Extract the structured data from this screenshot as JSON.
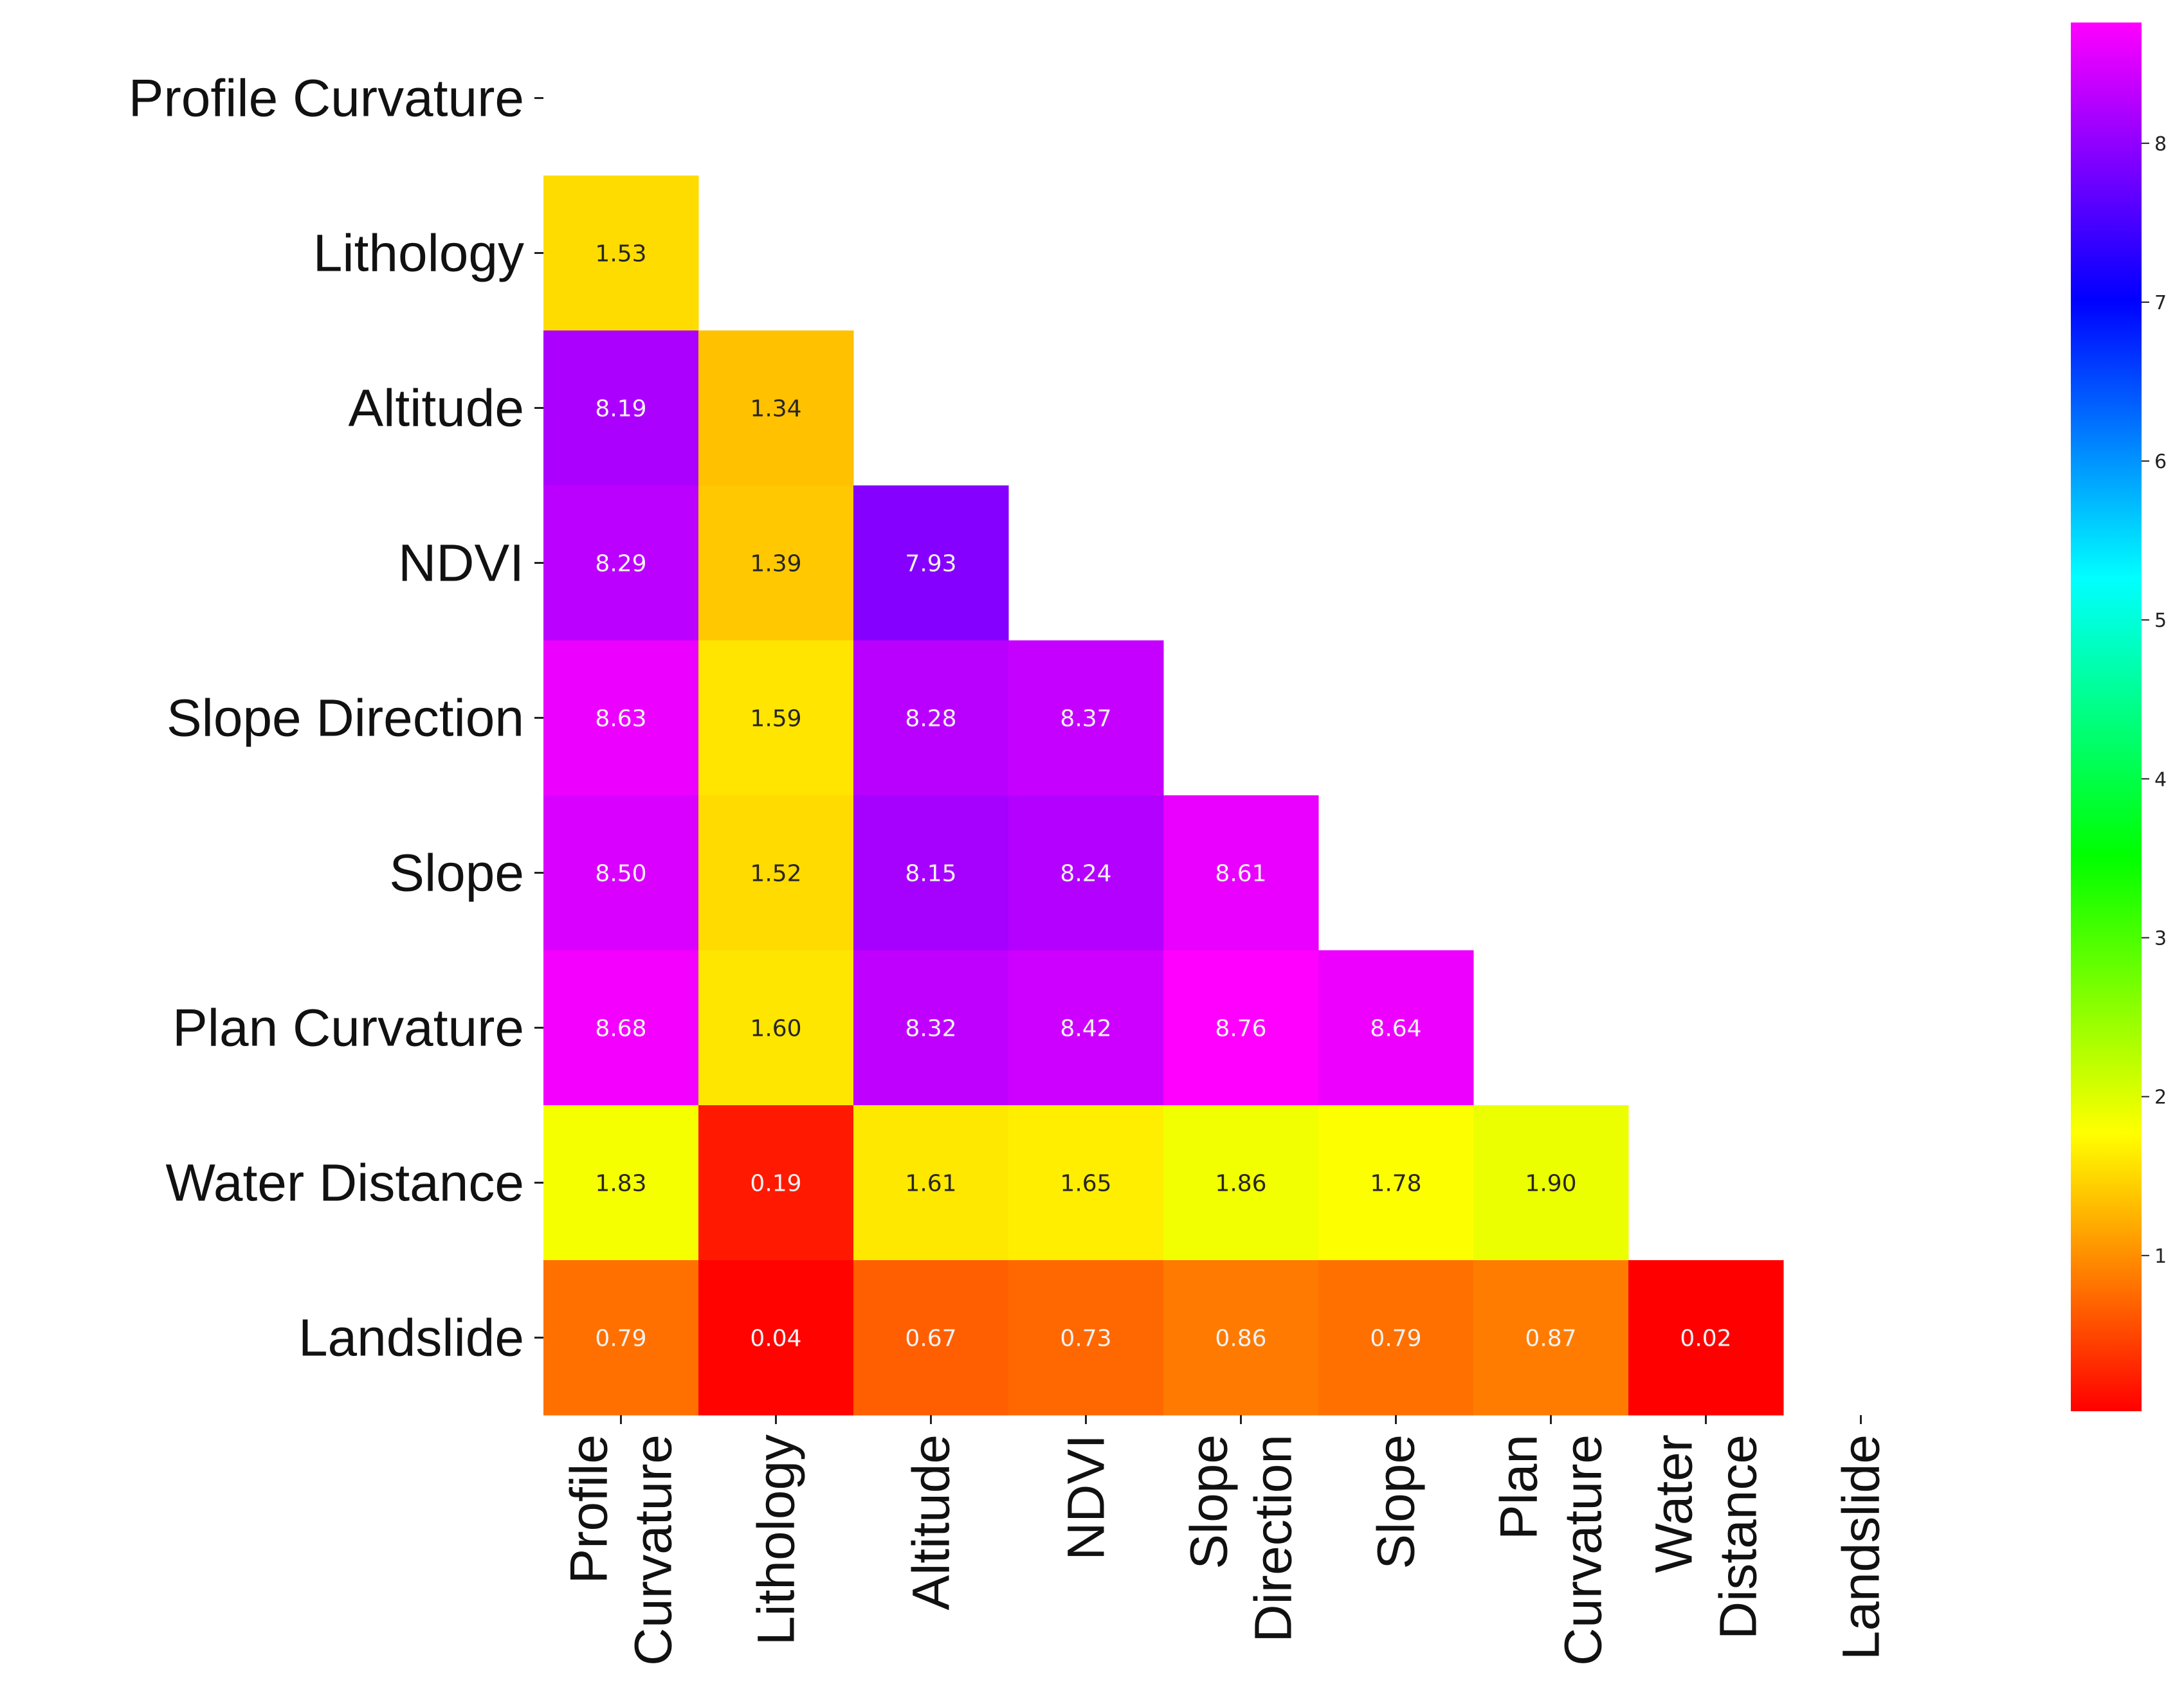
{
  "chart_data": {
    "type": "heatmap",
    "mask": "lower-triangle",
    "rows": [
      "Profile Curvature",
      "Lithology",
      "Altitude",
      "NDVI",
      "Slope Direction",
      "Slope",
      "Plan Curvature",
      "Water Distance",
      "Landslide"
    ],
    "columns": [
      [
        "Profile",
        "Curvature"
      ],
      [
        "Lithology"
      ],
      [
        "Altitude"
      ],
      [
        "NDVI"
      ],
      [
        "Slope",
        "Direction"
      ],
      [
        "Slope"
      ],
      [
        "Plan",
        "Curvature"
      ],
      [
        "Water",
        "Distance"
      ],
      [
        "Landslide"
      ]
    ],
    "values": [
      [],
      [
        1.53
      ],
      [
        8.19,
        1.34
      ],
      [
        8.29,
        1.39,
        7.93
      ],
      [
        8.63,
        1.59,
        8.28,
        8.37
      ],
      [
        8.5,
        1.52,
        8.15,
        8.24,
        8.61
      ],
      [
        8.68,
        1.6,
        8.32,
        8.42,
        8.76,
        8.64
      ],
      [
        1.83,
        0.19,
        1.61,
        1.65,
        1.86,
        1.78,
        1.9
      ],
      [
        0.79,
        0.04,
        0.67,
        0.73,
        0.86,
        0.79,
        0.87,
        0.02
      ]
    ],
    "value_format": "2-decimals",
    "colormap": "gist_rainbow (red→yellow→green→cyan→blue→magenta)",
    "colorbar": {
      "vmin": 0.02,
      "vmax": 8.76,
      "ticks": [
        1,
        2,
        3,
        4,
        5,
        6,
        7,
        8
      ],
      "placement": "right"
    }
  }
}
